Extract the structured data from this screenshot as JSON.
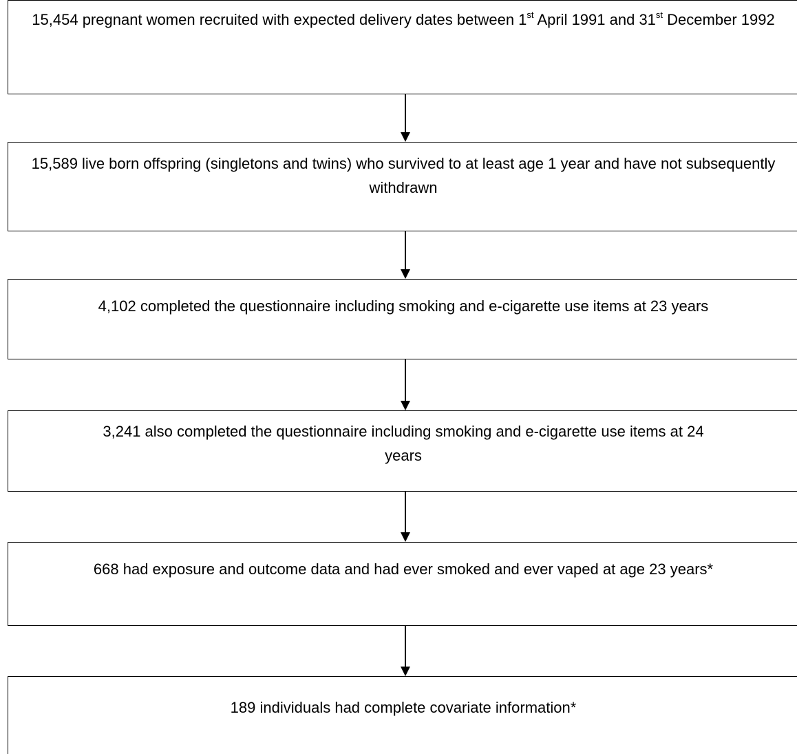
{
  "flowchart": {
    "steps": [
      {
        "text_a": "15,454 pregnant women recruited with expected delivery dates between 1",
        "sup_a": "st",
        "text_b": " April 1991 and 31",
        "sup_b": "st",
        "text_c": " December 1992"
      },
      {
        "text": "15,589 live born offspring (singletons and twins) who survived to at least age 1 year and have not subsequently withdrawn"
      },
      {
        "text": "4,102 completed the questionnaire including smoking and e-cigarette use items at 23 years"
      },
      {
        "text": "3,241 also completed the questionnaire including smoking and e-cigarette use items at 24 years"
      },
      {
        "text": "668 had exposure and outcome data and had ever smoked and ever vaped at age 23 years*"
      },
      {
        "text": "189 individuals had complete covariate information*"
      }
    ]
  }
}
